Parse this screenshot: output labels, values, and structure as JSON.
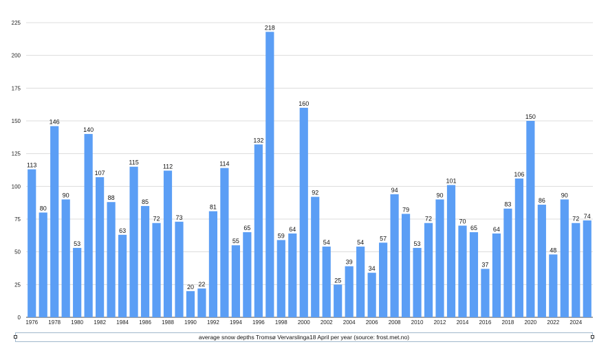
{
  "chart_data": {
    "type": "bar",
    "title": "",
    "xlabel": "",
    "ylabel": "",
    "ylim": [
      0,
      225
    ],
    "yticks": [
      0,
      25,
      50,
      75,
      100,
      125,
      150,
      175,
      200,
      225
    ],
    "grid": true,
    "bar_color": "#5b9ef5",
    "categories": [
      "1976",
      "1977",
      "1978",
      "1979",
      "1980",
      "1981",
      "1982",
      "1983",
      "1984",
      "1985",
      "1986",
      "1987",
      "1988",
      "1989",
      "1990",
      "1991",
      "1992",
      "1993",
      "1994",
      "1995",
      "1996",
      "1997",
      "1998",
      "1999",
      "2000",
      "2001",
      "2002",
      "2003",
      "2004",
      "2005",
      "2006",
      "2007",
      "2008",
      "2009",
      "2010",
      "2011",
      "2012",
      "2013",
      "2014",
      "2015",
      "2016",
      "2017",
      "2018",
      "2019",
      "2020",
      "2021",
      "2022",
      "2023",
      "2024",
      "2025"
    ],
    "xtick_labels": [
      "1976",
      "1978",
      "1980",
      "1982",
      "1984",
      "1986",
      "1988",
      "1990",
      "1992",
      "1994",
      "1996",
      "1998",
      "2000",
      "2002",
      "2004",
      "2006",
      "2008",
      "2010",
      "2012",
      "2014",
      "2016",
      "2018",
      "2020",
      "2022",
      "2024"
    ],
    "values": [
      113,
      80,
      146,
      90,
      53,
      140,
      107,
      88,
      63,
      115,
      85,
      72,
      112,
      73,
      20,
      22,
      81,
      114,
      55,
      65,
      132,
      218,
      59,
      64,
      160,
      92,
      54,
      25,
      39,
      54,
      34,
      57,
      94,
      79,
      53,
      72,
      90,
      101,
      70,
      65,
      37,
      64,
      83,
      106,
      150,
      86,
      48,
      90,
      72,
      74
    ]
  },
  "caption": "average snow depths Tromsø Vervarslinga18 April per year (source: frost.met.no)"
}
